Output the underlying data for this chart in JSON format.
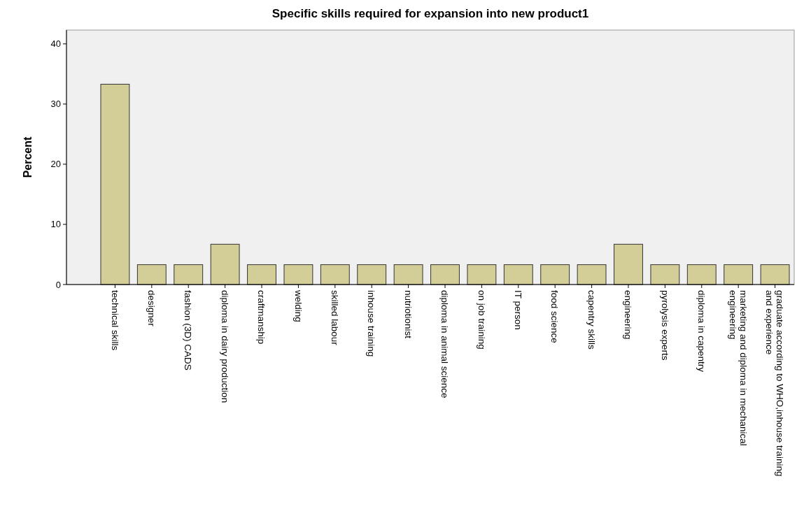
{
  "chart_data": {
    "type": "bar",
    "title": "Specific skills required for expansion into new product1",
    "ylabel": "Percent",
    "categories": [
      "technical skills",
      "designer",
      "fashion (3D) CADS",
      "diploma in dairy production",
      "craftmanship",
      "welding",
      "skilled labour",
      "inhouse training",
      "nutriotionist",
      "diploma in animal science",
      "on job training",
      "IT person",
      "food science",
      "capentry skills",
      "engineering",
      "pyrolysis experts",
      "diploma in capentry",
      "marketing and diploma in mechanical\nengineering",
      "graduate according to WHO,inhouse training\nand experience"
    ],
    "values": [
      33.3,
      3.3,
      3.3,
      6.7,
      3.3,
      3.3,
      3.3,
      3.3,
      3.3,
      3.3,
      3.3,
      3.3,
      3.3,
      3.3,
      6.7,
      3.3,
      3.3,
      3.3,
      3.3
    ],
    "color": "#d3ce98",
    "ylim": [
      0,
      42.3
    ],
    "yticks": [
      0,
      10,
      20,
      30,
      40
    ],
    "grid": false
  }
}
